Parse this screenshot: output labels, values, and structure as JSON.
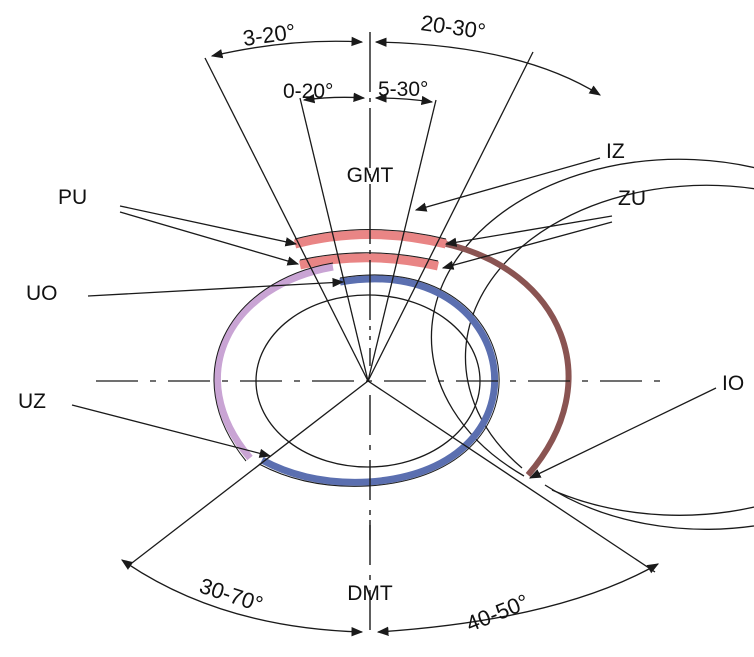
{
  "labels": {
    "gmt": "GMT",
    "dmt": "DMT",
    "pu": "PU",
    "uo": "UO",
    "uz": "UZ",
    "iz": "IZ",
    "zu": "ZU",
    "io": "IO"
  },
  "angles": {
    "intake_open": "3-20°",
    "exhaust_close": "20-30°",
    "inlet_small": "0-20°",
    "exhaust_small": "5-30°",
    "intake_close": "30-70°",
    "exhaust_open": "40-50°"
  },
  "colors": {
    "red_band": "#e98585",
    "blue_band": "#5b6fb0",
    "violet_band": "#c9a4d4",
    "brown_band": "#8a5452",
    "line": "#1a1a1a"
  }
}
